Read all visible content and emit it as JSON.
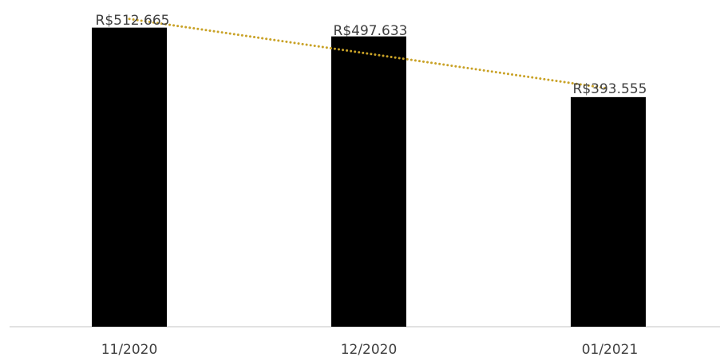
{
  "chart_data": {
    "type": "bar",
    "title": "",
    "xlabel": "",
    "ylabel": "",
    "categories": [
      "11/2020",
      "12/2020",
      "01/2021"
    ],
    "values": [
      512665,
      497633,
      393555
    ],
    "data_labels": [
      "R$512.665",
      "R$497.633",
      "R$393.555"
    ],
    "ylim": [
      0,
      560000
    ],
    "grid": false,
    "legend": "none",
    "trendline": {
      "type": "linear",
      "style": "dotted"
    },
    "colors": {
      "bar": "#000000",
      "trendline": "#C9A227",
      "axis": "#D9D9D9",
      "text": "#404040"
    }
  }
}
